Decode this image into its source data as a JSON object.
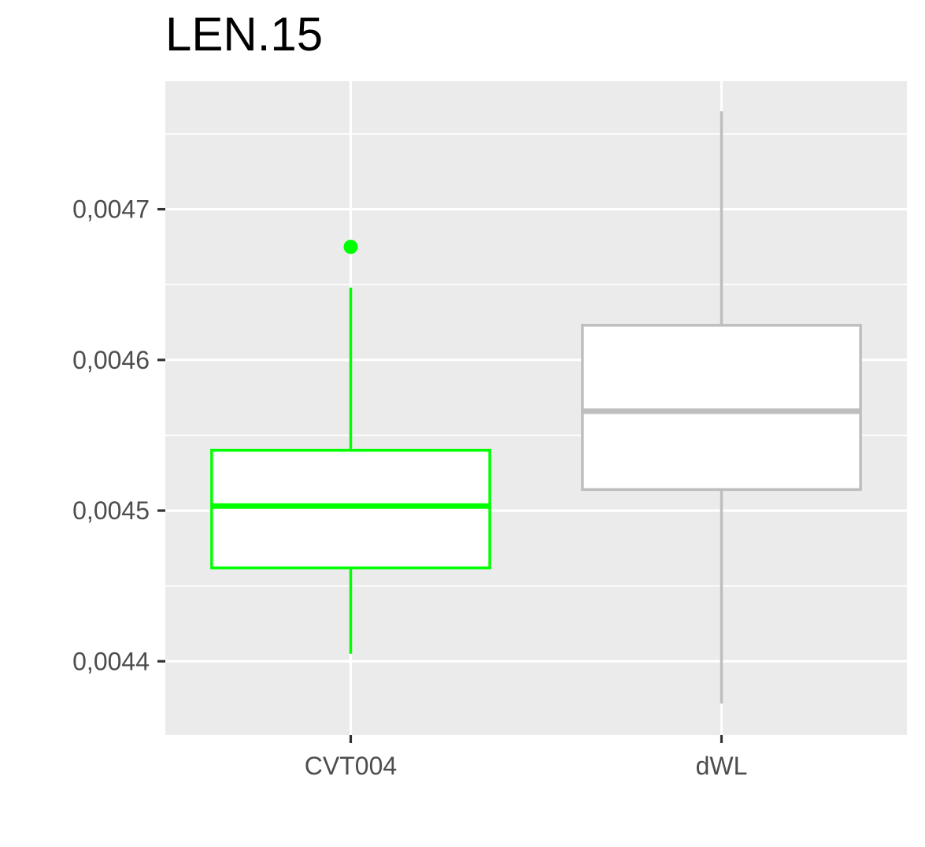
{
  "chart_data": {
    "type": "boxplot",
    "title": "LEN.15",
    "xlabel": "",
    "ylabel": "",
    "categories": [
      "CVT004",
      "dWL"
    ],
    "y_ticks": [
      0.0044,
      0.0045,
      0.0046,
      0.0047
    ],
    "y_tick_labels": [
      "0,0044",
      "0,0045",
      "0,0046",
      "0,0047"
    ],
    "ylim": [
      0.004351,
      0.004785
    ],
    "grid": true,
    "legend": "none",
    "series": [
      {
        "category": "CVT004",
        "color": "#00ff00",
        "whisker_low": 0.004405,
        "q1": 0.004462,
        "median": 0.004503,
        "q3": 0.00454,
        "whisker_high": 0.004648,
        "outliers": [
          0.004675
        ]
      },
      {
        "category": "dWL",
        "color": "#bebebe",
        "whisker_low": 0.004372,
        "q1": 0.004514,
        "median": 0.004566,
        "q3": 0.004623,
        "whisker_high": 0.004765,
        "outliers": []
      }
    ]
  }
}
